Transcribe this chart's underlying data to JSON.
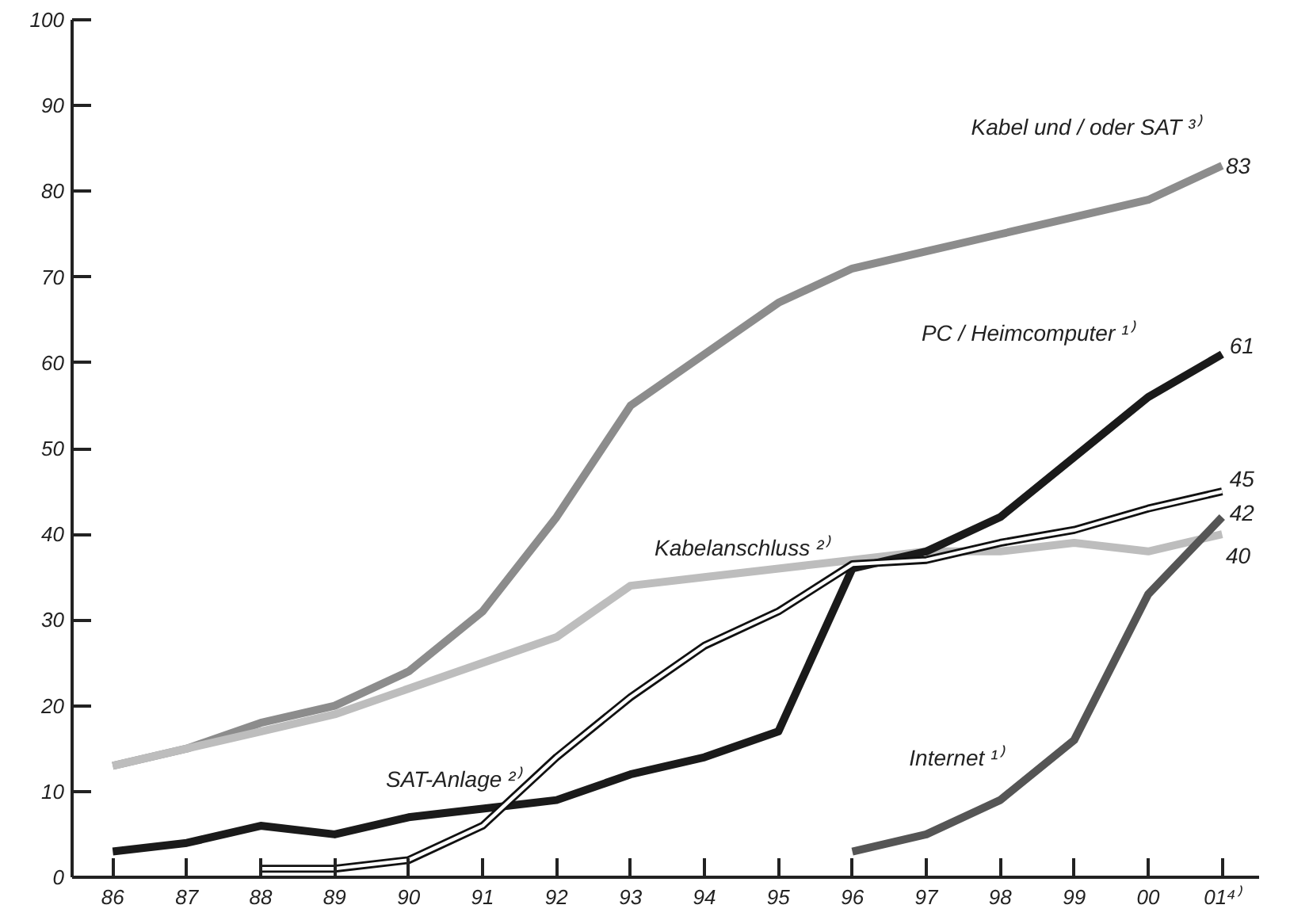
{
  "chart_data": {
    "type": "line",
    "categories": [
      "86",
      "87",
      "88",
      "89",
      "90",
      "91",
      "92",
      "93",
      "94",
      "95",
      "96",
      "97",
      "98",
      "99",
      "00",
      "01⁴⁾"
    ],
    "ylim": [
      0,
      100
    ],
    "yticks": [
      0,
      10,
      20,
      30,
      40,
      50,
      60,
      70,
      80,
      90,
      100
    ],
    "grid": false,
    "legend": false,
    "marker": "none",
    "series": [
      {
        "name": "Kabel und / oder SAT ³⁾",
        "color": "#8c8c8c",
        "values": [
          13,
          15,
          18,
          20,
          24,
          31,
          42,
          55,
          61,
          67,
          71,
          73,
          75,
          77,
          79,
          83
        ],
        "value_labels": [
          null,
          null,
          null,
          null,
          null,
          null,
          null,
          null,
          null,
          null,
          null,
          null,
          null,
          null,
          null,
          "83"
        ]
      },
      {
        "name": "Kabelanschluss ²⁾",
        "color": "#bdbdbd",
        "values": [
          13,
          15,
          17,
          19,
          22,
          25,
          28,
          34,
          35,
          36,
          37,
          38,
          38,
          39,
          38,
          40
        ],
        "value_labels": [
          null,
          null,
          null,
          null,
          null,
          null,
          null,
          null,
          null,
          null,
          null,
          null,
          null,
          null,
          null,
          "40"
        ]
      },
      {
        "name": "PC / Heimcomputer ¹⁾",
        "color": "#1a1a1a",
        "values": [
          3,
          4,
          6,
          5,
          7,
          8,
          9,
          12,
          14,
          17,
          36,
          38,
          42,
          49,
          56,
          61
        ],
        "value_labels": [
          null,
          null,
          null,
          null,
          null,
          null,
          null,
          null,
          null,
          null,
          null,
          null,
          null,
          null,
          null,
          "61"
        ]
      },
      {
        "name": "SAT-Anlage ²⁾",
        "color": "#111111",
        "values": [
          null,
          null,
          1,
          1,
          2,
          6,
          14,
          21,
          27,
          31,
          36.5,
          37,
          39,
          40.5,
          43,
          45
        ],
        "value_labels": [
          null,
          null,
          null,
          null,
          null,
          null,
          null,
          null,
          null,
          null,
          null,
          null,
          null,
          null,
          null,
          "45"
        ]
      },
      {
        "name": "Internet ¹⁾",
        "color": "#555555",
        "values": [
          null,
          null,
          null,
          null,
          null,
          null,
          null,
          null,
          null,
          null,
          3,
          5,
          9,
          16,
          33,
          42
        ],
        "value_labels": [
          null,
          null,
          null,
          null,
          null,
          null,
          null,
          null,
          null,
          null,
          null,
          null,
          null,
          null,
          null,
          "42"
        ]
      }
    ]
  }
}
